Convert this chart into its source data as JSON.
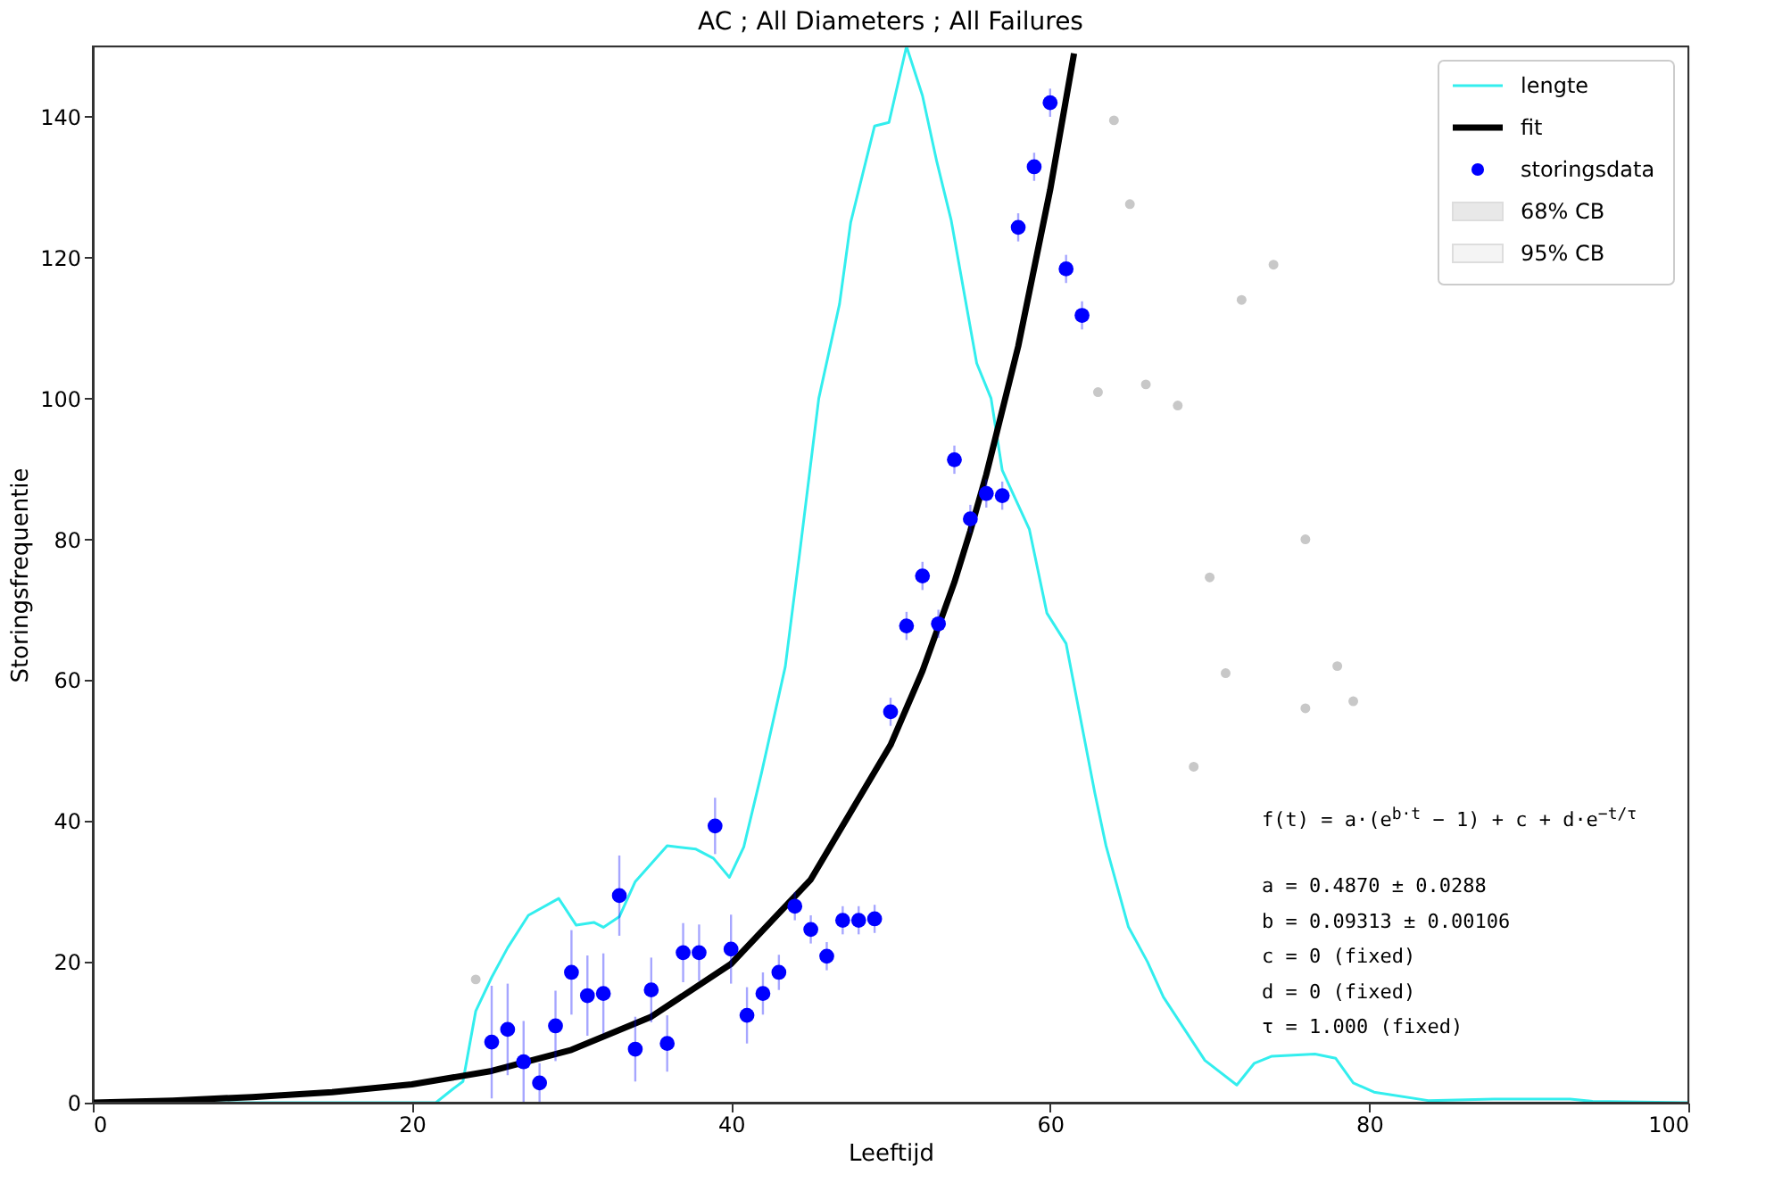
{
  "chart_data": {
    "type": "line",
    "title": "AC ; All Diameters ; All Failures",
    "xlabel": "Leeftijd",
    "ylabel": "Storingsfrequentie",
    "xlim": [
      0,
      100
    ],
    "xticks": [
      0,
      20,
      40,
      60,
      80,
      100
    ],
    "ylim": [
      0,
      150
    ],
    "yticks": [
      0,
      20,
      40,
      60,
      80,
      100,
      120,
      140
    ],
    "grid": false,
    "legend": "top right",
    "series": [
      {
        "name": "lengte",
        "color": "#33eeee",
        "x": [
          0,
          21.5,
          22.6,
          23.2,
          24,
          25,
          26,
          27.3,
          29.2,
          30.3,
          31.4,
          32,
          33,
          34,
          36,
          37.8,
          38.9,
          39.9,
          40.8,
          41.9,
          43.4,
          44.3,
          45.5,
          46.8,
          47.5,
          49,
          49.9,
          51,
          52,
          52.9,
          53.8,
          54.8,
          55.4,
          56.3,
          57,
          58.7,
          59.8,
          61,
          62.8,
          63.5,
          64.9,
          66.1,
          67.1,
          69.7,
          71.7,
          72.8,
          73.9,
          76.6,
          77.9,
          79,
          80.3,
          83.7,
          87.8,
          92.6,
          94,
          100
        ],
        "values": [
          0,
          0,
          2,
          3,
          13,
          17.8,
          22,
          26.6,
          29,
          25.2,
          25.6,
          24.9,
          26.4,
          31.4,
          36.5,
          36,
          34.7,
          32,
          36.3,
          46.7,
          61.9,
          78,
          100,
          113.4,
          125,
          138.7,
          139.2,
          150,
          143,
          133.6,
          125.3,
          112.6,
          105,
          100,
          89.8,
          81.4,
          69.5,
          65.2,
          44,
          36.5,
          25,
          20,
          15,
          6,
          2.5,
          5.6,
          6.6,
          6.9,
          6.3,
          2.8,
          1.5,
          0.3,
          0.5,
          0.5,
          0.2,
          0
        ]
      },
      {
        "name": "fit",
        "color": "#000000",
        "x": [
          0,
          5,
          10,
          15,
          20,
          25,
          30,
          35,
          40,
          45,
          50,
          52,
          54,
          55,
          56,
          58,
          60,
          61.5
        ],
        "values": [
          0,
          0.3,
          0.8,
          1.5,
          2.6,
          4.5,
          7.5,
          12.2,
          19.7,
          31.7,
          50.8,
          61.3,
          73.9,
          81.2,
          89.2,
          107.4,
          129.6,
          149
        ]
      },
      {
        "name": "storingsdata",
        "type": "scatter",
        "marker": "circle",
        "color": "#0000ff",
        "x": [
          25,
          26,
          27,
          28,
          29,
          30,
          31,
          32,
          33,
          34,
          35,
          36,
          37,
          38,
          39,
          40,
          41,
          42,
          43,
          44,
          45,
          46,
          47,
          48,
          49,
          50,
          51,
          52,
          53,
          54,
          55,
          56,
          57,
          58,
          59,
          60,
          61,
          62
        ],
        "values": [
          8.6,
          10.4,
          5.8,
          2.8,
          10.9,
          18.5,
          15.2,
          15.5,
          29.4,
          7.6,
          16,
          8.4,
          21.3,
          21.3,
          39.3,
          21.8,
          12.4,
          15.5,
          18.5,
          27.9,
          24.6,
          20.8,
          25.9,
          25.9,
          26.1,
          55.5,
          67.7,
          74.8,
          68,
          91.3,
          82.9,
          86.5,
          86.2,
          124.3,
          132.9,
          142,
          118.4,
          111.8
        ],
        "errors": [
          8,
          6.5,
          5.8,
          2.8,
          5,
          6,
          5.7,
          5.7,
          5.7,
          4.6,
          4.6,
          4,
          4.2,
          4,
          4,
          4.9,
          4,
          3,
          2.5,
          2,
          2,
          2,
          2,
          2,
          2,
          2,
          2,
          2,
          2,
          2,
          2,
          2,
          2,
          2,
          2,
          2,
          2,
          2
        ]
      },
      {
        "type": "scatter",
        "marker": "circle",
        "color": "#c8c8c8",
        "x": [
          24,
          63,
          64,
          65,
          66,
          68,
          69,
          70,
          71,
          72,
          74,
          76,
          76,
          78,
          79
        ],
        "values": [
          17.5,
          100.9,
          139.5,
          127.6,
          102,
          99,
          47.7,
          74.6,
          61,
          114,
          119,
          80,
          56,
          62,
          57
        ]
      },
      {
        "name": "68% CB",
        "type": "area",
        "color": "#e8e8e8"
      },
      {
        "name": "95% CB",
        "type": "area",
        "color": "#f4f4f4"
      }
    ],
    "annotations": [
      "f(t) = a·(e$^{b·t}$ − 1) + c + d·e$^{−t/τ}$",
      "a = 0.4870 ± 0.0288",
      "b = 0.09313 ± 0.00106",
      "c = 0 (fixed)",
      "d = 0 (fixed)",
      "τ = 1.000 (fixed)"
    ]
  }
}
